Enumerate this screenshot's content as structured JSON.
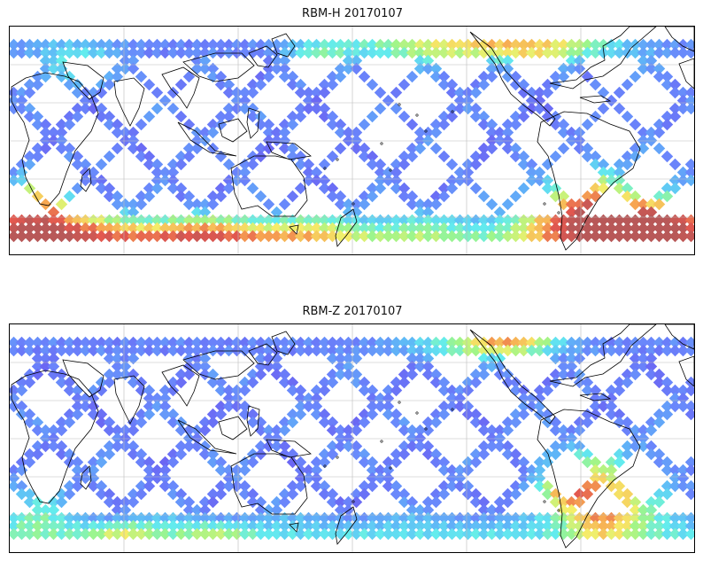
{
  "panels": [
    {
      "title": "RBM-H 20170107",
      "colormap": [
        "#6b5cf0",
        "#6a86fb",
        "#5fb6f7",
        "#63ecee",
        "#9ef58a",
        "#f5ee6a",
        "#f7a651",
        "#e3574f",
        "#b85858"
      ],
      "hot_regions": [
        {
          "region": "Southern Ocean south of Atlantic",
          "level": 0.95
        },
        {
          "region": "Southern Ocean south of Indian Ocean",
          "level": 0.8
        },
        {
          "region": "Western Atlantic off South America",
          "level": 0.85
        },
        {
          "region": "North Atlantic",
          "level": 0.75
        },
        {
          "region": "North Pacific",
          "level": 0.55
        }
      ]
    },
    {
      "title": "RBM-Z 20170107",
      "colormap": [
        "#6b5cf0",
        "#6a86fb",
        "#5fb6f7",
        "#63ecee",
        "#9ef58a",
        "#f5ee6a",
        "#f7a651",
        "#e3574f",
        "#b85858"
      ],
      "hot_regions": [
        {
          "region": "Western Atlantic off South America",
          "level": 0.8
        },
        {
          "region": "South Atlantic",
          "level": 0.6
        },
        {
          "region": "North Atlantic",
          "level": 0.55
        },
        {
          "region": "Southern Ocean",
          "level": 0.4
        }
      ]
    }
  ],
  "map": {
    "projection": "equirectangular",
    "central_longitude": 180,
    "grid": true,
    "background_color": "#ffffff",
    "coastline_color": "#000000",
    "gridline_color": "#bbbbbb"
  }
}
